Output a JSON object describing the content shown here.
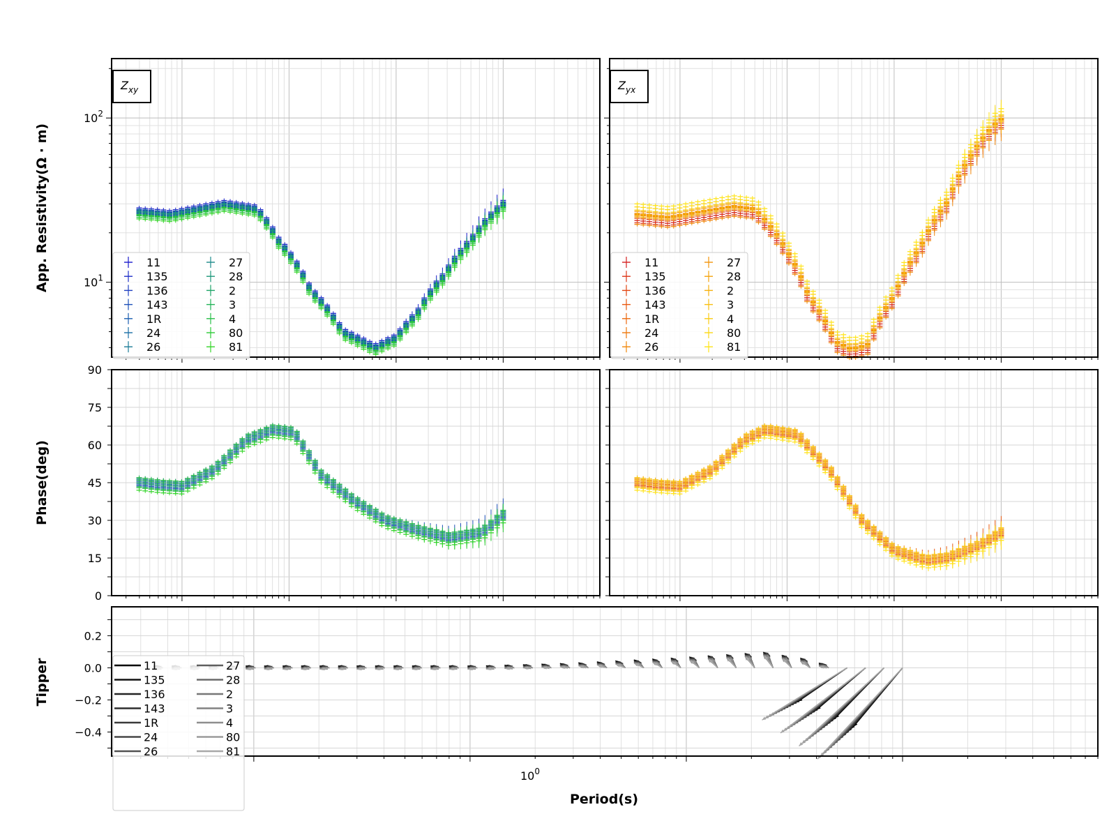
{
  "x_axis": {
    "label": "Period(s)",
    "tick_label": "10",
    "tick_exponent": "0"
  },
  "panels": {
    "zxy": {
      "tag_main": "Z",
      "tag_sub": "xy"
    },
    "zyx": {
      "tag_main": "Z",
      "tag_sub": "yx"
    }
  },
  "rows": {
    "rho": {
      "ylabel": "App. Resistivity(Ω · m)",
      "ticks": [
        {
          "base": "10",
          "exp": "1",
          "value": 10
        },
        {
          "base": "10",
          "exp": "2",
          "value": 100
        }
      ]
    },
    "phase": {
      "ylabel": "Phase(deg)",
      "ticks": [
        "0",
        "15",
        "30",
        "45",
        "60",
        "75",
        "90"
      ]
    },
    "tipper": {
      "ylabel": "Tipper",
      "ticks": [
        "−0.4",
        "−0.2",
        "0.0",
        "0.2"
      ]
    }
  },
  "stations": [
    "11",
    "135",
    "136",
    "143",
    "1R",
    "24",
    "26",
    "27",
    "28",
    "2",
    "3",
    "4",
    "80",
    "81"
  ],
  "colors": {
    "zxy": [
      "#1a1acc",
      "#1f2fc8",
      "#2040c0",
      "#1c4fb8",
      "#1a5eb0",
      "#1a6ea5",
      "#1b7c98",
      "#1c8a8a",
      "#1d977a",
      "#1fa468",
      "#22b257",
      "#26be45",
      "#2cca36",
      "#35d62a"
    ],
    "zyx": [
      "#d42020",
      "#dc3418",
      "#e24612",
      "#e8580e",
      "#ec680c",
      "#ee780a",
      "#f0870a",
      "#f2950a",
      "#f4a30c",
      "#f6b10e",
      "#f8bf10",
      "#facc12",
      "#fcd814",
      "#ffe418"
    ],
    "tipper": [
      "#000000",
      "#111111",
      "#222222",
      "#2e2e2e",
      "#3a3a3a",
      "#464646",
      "#525252",
      "#5e5e5e",
      "#6a6a6a",
      "#767676",
      "#828282",
      "#8e8e8e",
      "#9a9a9a",
      "#a8a8a8"
    ]
  },
  "chart_data": {
    "type": "scatter",
    "x_scale": "log",
    "xlim": [
      0.00022,
      8.0
    ],
    "panels": [
      {
        "name": "Zxy apparent resistivity",
        "y_scale": "log",
        "ylim": [
          3.5,
          230
        ],
        "curve": {
          "log10_period": [
            -3.4,
            -3.1,
            -2.85,
            -2.6,
            -2.3,
            -2.1,
            -1.8,
            -1.5,
            -1.2,
            -1.0,
            -0.8,
            -0.55,
            -0.3,
            -0.1,
            0.0
          ],
          "value": [
            27,
            26,
            28,
            30,
            28,
            18,
            9,
            5,
            4.0,
            4.6,
            6.5,
            11,
            18,
            26,
            30
          ]
        },
        "series_scale": [
          1.05,
          1.02,
          1.0,
          0.98,
          1.03,
          0.97,
          1.0,
          1.01,
          0.99,
          0.96,
          0.94,
          0.92,
          0.95,
          0.9
        ]
      },
      {
        "name": "Zyx apparent resistivity",
        "y_scale": "log",
        "ylim": [
          3.5,
          230
        ],
        "curve": {
          "log10_period": [
            -3.4,
            -3.1,
            -2.8,
            -2.5,
            -2.3,
            -2.0,
            -1.8,
            -1.55,
            -1.4,
            -1.25,
            -1.0,
            -0.75,
            -0.5,
            -0.3,
            -0.05,
            0.0
          ],
          "value": [
            25,
            24,
            26,
            28,
            27,
            15,
            8,
            4.2,
            3.8,
            4.0,
            8,
            16,
            30,
            55,
            90,
            95
          ]
        },
        "series_scale": [
          0.95,
          0.92,
          0.98,
          1.0,
          1.03,
          1.05,
          0.9,
          1.08,
          1.02,
          1.0,
          1.04,
          1.1,
          1.15,
          1.2
        ]
      },
      {
        "name": "Zxy phase",
        "ylim": [
          0,
          90
        ],
        "curve": {
          "log10_period": [
            -3.4,
            -3.2,
            -3.0,
            -2.7,
            -2.4,
            -2.15,
            -1.95,
            -1.7,
            -1.4,
            -1.1,
            -0.8,
            -0.5,
            -0.2,
            0.0
          ],
          "value": [
            45,
            44,
            43.5,
            50,
            62,
            66,
            65,
            48,
            38,
            30,
            26,
            23,
            25,
            32
          ]
        },
        "series_offset": [
          0,
          1,
          -1,
          2,
          -2,
          0.5,
          -0.5,
          1.5,
          -1.5,
          0,
          1,
          2,
          -2,
          -3
        ]
      },
      {
        "name": "Zyx phase",
        "ylim": [
          0,
          90
        ],
        "curve": {
          "log10_period": [
            -3.4,
            -3.2,
            -3.0,
            -2.7,
            -2.4,
            -2.2,
            -1.9,
            -1.6,
            -1.3,
            -1.0,
            -0.7,
            -0.5,
            -0.2,
            0.0
          ],
          "value": [
            45,
            44,
            43.5,
            50,
            62,
            66,
            64,
            50,
            30,
            18,
            14,
            15,
            20,
            25
          ]
        },
        "series_offset": [
          0,
          1,
          -1,
          2,
          -2,
          0.5,
          -0.5,
          1.5,
          -1.5,
          0,
          1,
          2,
          -2,
          -3
        ]
      }
    ],
    "tipper": {
      "ylim": [
        -0.55,
        0.38
      ],
      "curve": {
        "log10_period": [
          -3.4,
          -2.8,
          -2.2,
          -1.9,
          -1.5,
          -1.0,
          -0.6,
          -0.4,
          -0.3
        ],
        "value": [
          0.0,
          0.0,
          0.0,
          0.0,
          0.02,
          0.06,
          0.1,
          0.05,
          0.0
        ]
      },
      "long_period_magnitude": [
        -0.3,
        -0.6
      ],
      "long_period_start": -0.3
    },
    "grid": true,
    "legend": "lower-left"
  }
}
